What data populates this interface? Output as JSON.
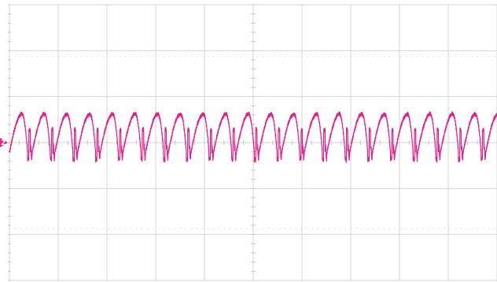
{
  "chart_data": {
    "type": "line",
    "title": "",
    "xlabel": "",
    "ylabel": "",
    "grid": true,
    "divisions": {
      "x": 10,
      "y": 6
    },
    "xlim": [
      0,
      10
    ],
    "ylim": [
      -3,
      3
    ],
    "series": [
      {
        "color": "#e0218a",
        "cycles": 21.5,
        "peak": 0.62,
        "trough": -0.22,
        "spike_low": -0.4,
        "spike_high": 0.28
      }
    ],
    "channel_marker": {
      "text": "2",
      "color": "#e0218a",
      "level": 0.0
    }
  }
}
